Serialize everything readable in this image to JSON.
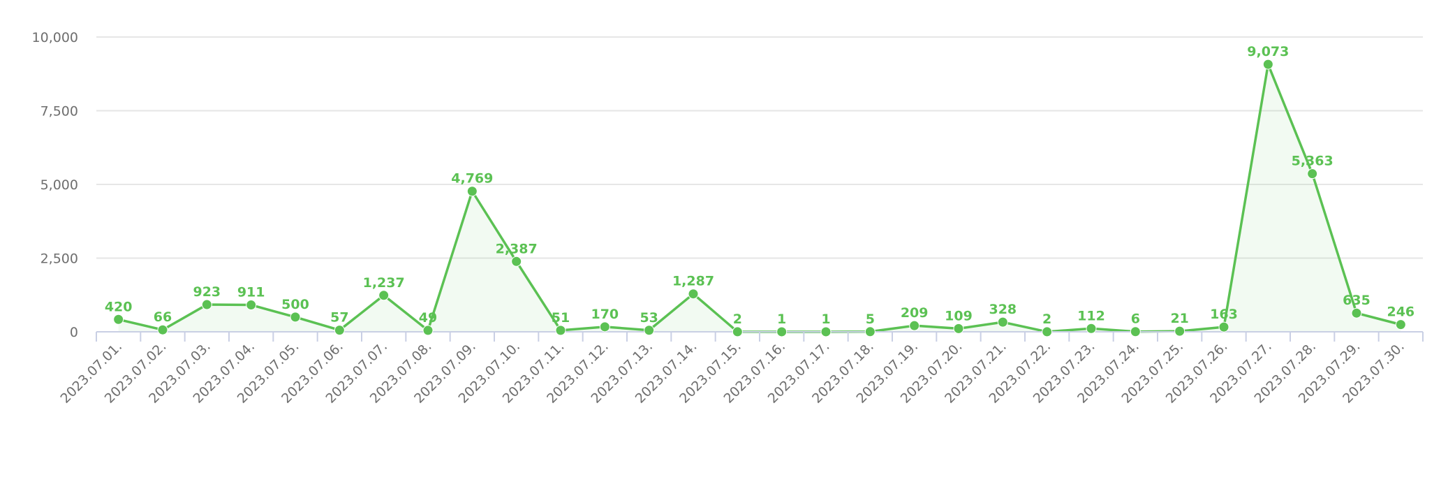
{
  "chart_data": {
    "type": "area",
    "x": [
      "2023.07.01.",
      "2023.07.02.",
      "2023.07.03.",
      "2023.07.04.",
      "2023.07.05.",
      "2023.07.06.",
      "2023.07.07.",
      "2023.07.08.",
      "2023.07.09.",
      "2023.07.10.",
      "2023.07.11.",
      "2023.07.12.",
      "2023.07.13.",
      "2023.07.14.",
      "2023.07.15.",
      "2023.07.16.",
      "2023.07.17.",
      "2023.07.18.",
      "2023.07.19.",
      "2023.07.20.",
      "2023.07.21.",
      "2023.07.22.",
      "2023.07.23.",
      "2023.07.24.",
      "2023.07.25.",
      "2023.07.26.",
      "2023.07.27.",
      "2023.07.28.",
      "2023.07.29.",
      "2023.07.30."
    ],
    "series": [
      {
        "values": [
          420,
          66,
          923,
          911,
          500,
          57,
          1237,
          49,
          4769,
          2387,
          51,
          170,
          53,
          1287,
          2,
          1,
          1,
          5,
          209,
          109,
          328,
          2,
          112,
          6,
          21,
          163,
          9073,
          5363,
          635,
          246
        ],
        "labels": [
          "420",
          "66",
          "923",
          "911",
          "500",
          "57",
          "1,237",
          "49",
          "4,769",
          "2,387",
          "51",
          "170",
          "53",
          "1,287",
          "2",
          "1",
          "1",
          "5",
          "209",
          "109",
          "328",
          "2",
          "112",
          "6",
          "21",
          "163",
          "9,073",
          "5,363",
          "635",
          "246"
        ],
        "color": "#5bc153"
      }
    ],
    "yticks": [
      {
        "value": 0,
        "label": "0"
      },
      {
        "value": 2500,
        "label": "2,500"
      },
      {
        "value": 5000,
        "label": "5,000"
      },
      {
        "value": 7500,
        "label": "7,500"
      },
      {
        "value": 10000,
        "label": "10,000"
      }
    ],
    "ylim": [
      0,
      10000
    ],
    "grid": true,
    "legend": "none",
    "colors": {
      "line": "#5bc153",
      "fill": "#5bc153",
      "grid": "#e6e6e6",
      "axis": "#c9cfe4",
      "tick_text": "#6e6e6e"
    }
  }
}
